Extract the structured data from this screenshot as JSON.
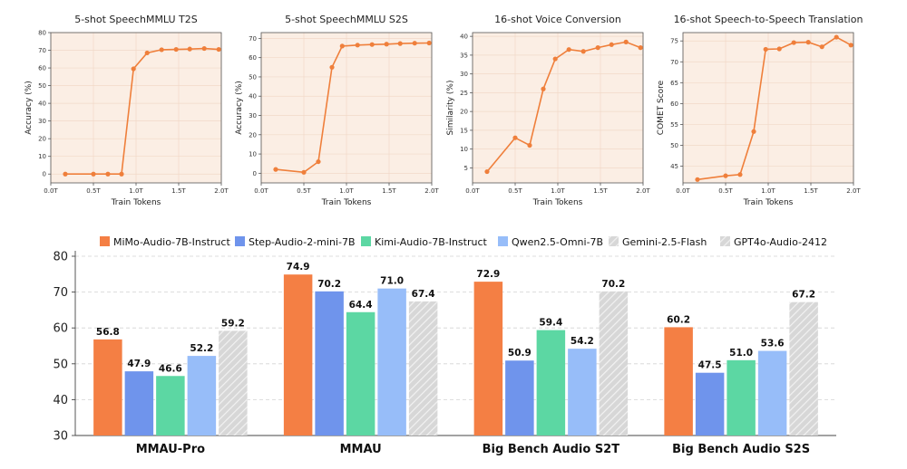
{
  "chart_data": [
    {
      "type": "line",
      "title": "5-shot SpeechMMLU T2S",
      "xlabel": "Train Tokens",
      "ylabel": "Accuracy (%)",
      "xlim": [
        0,
        2.0
      ],
      "ylim": [
        -5,
        80
      ],
      "xticks": [
        0,
        0.5,
        1.0,
        1.5,
        2.0
      ],
      "xtick_labels": [
        "0.0T",
        "0.5T",
        "1.0T",
        "1.5T",
        "2.0T"
      ],
      "yticks": [
        0,
        10,
        20,
        30,
        40,
        50,
        60,
        70,
        80
      ],
      "x": [
        0.17,
        0.5,
        0.67,
        0.83,
        0.97,
        1.13,
        1.3,
        1.47,
        1.63,
        1.8,
        1.97
      ],
      "y": [
        0,
        0,
        0,
        0,
        59.5,
        68.5,
        70.3,
        70.5,
        70.7,
        71.0,
        70.5
      ],
      "color": "#ef7f3b",
      "background": "#fbeee4",
      "grid": true
    },
    {
      "type": "line",
      "title": "5-shot SpeechMMLU S2S",
      "xlabel": "Train Tokens",
      "ylabel": "Accuracy (%)",
      "xlim": [
        0,
        2.0
      ],
      "ylim": [
        -5,
        73
      ],
      "xticks": [
        0,
        0.5,
        1.0,
        1.5,
        2.0
      ],
      "xtick_labels": [
        "0.0T",
        "0.5T",
        "1.0T",
        "1.5T",
        "2.0T"
      ],
      "yticks": [
        0,
        10,
        20,
        30,
        40,
        50,
        60,
        70
      ],
      "x": [
        0.17,
        0.5,
        0.67,
        0.83,
        0.95,
        1.13,
        1.3,
        1.47,
        1.63,
        1.8,
        1.97
      ],
      "y": [
        2,
        0.5,
        6,
        55,
        66,
        66.5,
        66.8,
        67,
        67.3,
        67.5,
        67.6
      ],
      "color": "#ef7f3b",
      "background": "#fbeee4",
      "grid": true
    },
    {
      "type": "line",
      "title": "16-shot Voice Conversion",
      "xlabel": "Train Tokens",
      "ylabel": "Similarity (%)",
      "xlim": [
        0,
        2.0
      ],
      "ylim": [
        1,
        41
      ],
      "xticks": [
        0,
        0.5,
        1.0,
        1.5,
        2.0
      ],
      "xtick_labels": [
        "0.0T",
        "0.5T",
        "1.0T",
        "1.5T",
        "2.0T"
      ],
      "yticks": [
        5,
        10,
        15,
        20,
        25,
        30,
        35,
        40
      ],
      "x": [
        0.17,
        0.5,
        0.67,
        0.83,
        0.97,
        1.13,
        1.3,
        1.47,
        1.63,
        1.8,
        1.97
      ],
      "y": [
        4,
        13,
        11,
        26,
        34,
        36.5,
        36,
        37,
        37.8,
        38.5,
        37
      ],
      "color": "#ef7f3b",
      "background": "#fbeee4",
      "grid": true
    },
    {
      "type": "line",
      "title": "16-shot Speech-to-Speech Translation",
      "xlabel": "Train Tokens",
      "ylabel": "COMET Score",
      "xlim": [
        0,
        2.0
      ],
      "ylim": [
        41,
        77
      ],
      "xticks": [
        0,
        0.5,
        1.0,
        1.5,
        2.0
      ],
      "xtick_labels": [
        "0.0T",
        "0.5T",
        "1.0T",
        "1.5T",
        "2.0T"
      ],
      "yticks": [
        45,
        50,
        55,
        60,
        65,
        70,
        75
      ],
      "x": [
        0.17,
        0.5,
        0.67,
        0.83,
        0.97,
        1.13,
        1.3,
        1.47,
        1.63,
        1.8,
        1.97
      ],
      "y": [
        41.8,
        42.7,
        43,
        53.3,
        73,
        73.1,
        74.6,
        74.7,
        73.6,
        75.9,
        74
      ],
      "color": "#ef7f3b",
      "background": "#fbeee4",
      "grid": true
    },
    {
      "type": "bar",
      "title": "",
      "xlabel": "",
      "ylabel": "",
      "ylim": [
        30,
        80
      ],
      "yticks": [
        30,
        40,
        50,
        60,
        70,
        80
      ],
      "grid": true,
      "legend_position": "top",
      "categories": [
        "MMAU-Pro",
        "MMAU",
        "Big Bench Audio S2T",
        "Big Bench Audio S2S"
      ],
      "series": [
        {
          "name": "MiMo-Audio-7B-Instruct",
          "color": "#f47f44",
          "hatched": false,
          "values": [
            56.8,
            74.9,
            72.9,
            60.2
          ]
        },
        {
          "name": "Step-Audio-2-mini-7B",
          "color": "#6f94ec",
          "hatched": false,
          "values": [
            47.9,
            70.2,
            50.9,
            47.5
          ]
        },
        {
          "name": "Kimi-Audio-7B-Instruct",
          "color": "#5cd7a3",
          "hatched": false,
          "values": [
            46.6,
            64.4,
            59.4,
            51.0
          ]
        },
        {
          "name": "Qwen2.5-Omni-7B",
          "color": "#97bdf9",
          "hatched": false,
          "values": [
            52.2,
            71.0,
            54.2,
            53.6
          ]
        },
        {
          "name": "Gemini-2.5-Flash",
          "color": "#d4d4d4",
          "hatched": true,
          "values": [
            59.2,
            67.4,
            null,
            null
          ]
        },
        {
          "name": "GPT4o-Audio-2412",
          "color": "#d4d4d4",
          "hatched": true,
          "values": [
            null,
            null,
            70.2,
            67.2
          ]
        }
      ],
      "value_labels": [
        [
          "56.8",
          "74.9",
          "72.9",
          "60.2"
        ],
        [
          "47.9",
          "70.2",
          "50.9",
          "47.5"
        ],
        [
          "46.6",
          "64.4",
          "59.4",
          "51.0"
        ],
        [
          "52.2",
          "71.0",
          "54.2",
          "53.6"
        ],
        [
          "59.2",
          "67.4",
          null,
          null
        ],
        [
          null,
          null,
          "70.2",
          "67.2"
        ]
      ]
    }
  ]
}
